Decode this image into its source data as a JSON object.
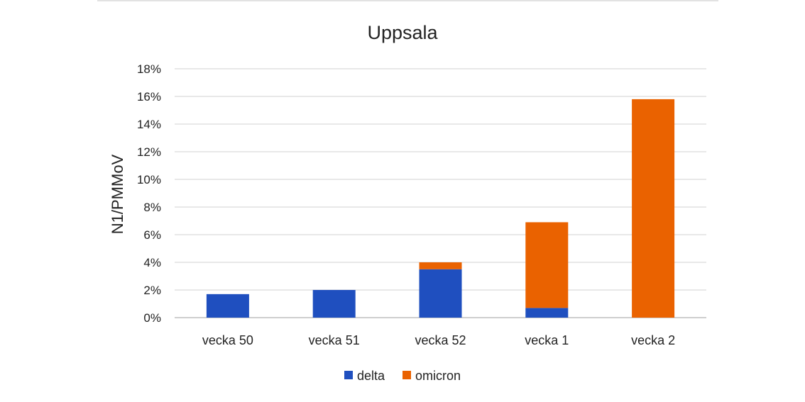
{
  "chart_data": {
    "type": "bar",
    "stacked": true,
    "title": "Uppsala",
    "xlabel": "",
    "ylabel": "N1/PMMoV",
    "ylim": [
      0,
      18
    ],
    "yticks": [
      "0%",
      "2%",
      "4%",
      "6%",
      "8%",
      "10%",
      "12%",
      "14%",
      "16%",
      "18%"
    ],
    "categories": [
      "vecka 50",
      "vecka 51",
      "vecka 52",
      "vecka 1",
      "vecka 2"
    ],
    "series": [
      {
        "name": "delta",
        "color": "#1f4fbf",
        "values": [
          1.7,
          2.0,
          3.5,
          0.7,
          0.0
        ]
      },
      {
        "name": "omicron",
        "color": "#ea6200",
        "values": [
          0.0,
          0.0,
          0.5,
          6.2,
          15.8
        ]
      }
    ],
    "grid": true,
    "legend": "bottom"
  }
}
